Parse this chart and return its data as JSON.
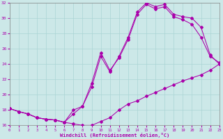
{
  "xlabel": "Windchill (Refroidissement éolien,°C)",
  "bg_color": "#cce8e8",
  "grid_color": "#aad4d4",
  "line_color": "#aa00aa",
  "xlim": [
    0,
    23
  ],
  "ylim": [
    16,
    32
  ],
  "xticks": [
    0,
    1,
    2,
    3,
    4,
    5,
    6,
    7,
    8,
    9,
    10,
    11,
    12,
    13,
    14,
    15,
    16,
    17,
    18,
    19,
    20,
    21,
    22,
    23
  ],
  "yticks": [
    16,
    18,
    20,
    22,
    24,
    26,
    28,
    30,
    32
  ],
  "line1_x": [
    0,
    1,
    2,
    3,
    4,
    5,
    6,
    7,
    8,
    9,
    10,
    11,
    12,
    13,
    14,
    15,
    16,
    17,
    18,
    19,
    20,
    21,
    22,
    23
  ],
  "line1_y": [
    18.2,
    17.8,
    17.5,
    17.0,
    16.8,
    16.7,
    16.4,
    16.2,
    16.0,
    16.0,
    16.5,
    17.0,
    18.0,
    18.8,
    19.2,
    19.8,
    20.3,
    20.8,
    21.3,
    21.8,
    22.2,
    22.6,
    23.2,
    24.0
  ],
  "line2_x": [
    0,
    1,
    2,
    3,
    4,
    5,
    6,
    7,
    8,
    9,
    10,
    11,
    12,
    13,
    14,
    15,
    16,
    17,
    18,
    19,
    20,
    21,
    22,
    23
  ],
  "line2_y": [
    18.2,
    17.8,
    17.5,
    17.0,
    16.8,
    16.7,
    16.4,
    17.5,
    18.5,
    21.5,
    25.5,
    23.2,
    24.8,
    27.2,
    30.5,
    31.8,
    31.2,
    31.5,
    30.2,
    29.8,
    29.2,
    27.5,
    25.0,
    24.2
  ],
  "line3_x": [
    0,
    1,
    2,
    3,
    4,
    5,
    6,
    7,
    8,
    9,
    10,
    11,
    12,
    13,
    14,
    15,
    16,
    17,
    18,
    19,
    20,
    21,
    22,
    23
  ],
  "line3_y": [
    18.2,
    17.8,
    17.5,
    17.0,
    16.8,
    16.7,
    16.4,
    18.0,
    18.5,
    21.0,
    25.0,
    23.0,
    25.0,
    27.5,
    30.8,
    32.0,
    31.5,
    31.8,
    30.5,
    30.2,
    30.0,
    28.8,
    25.2,
    24.0
  ]
}
